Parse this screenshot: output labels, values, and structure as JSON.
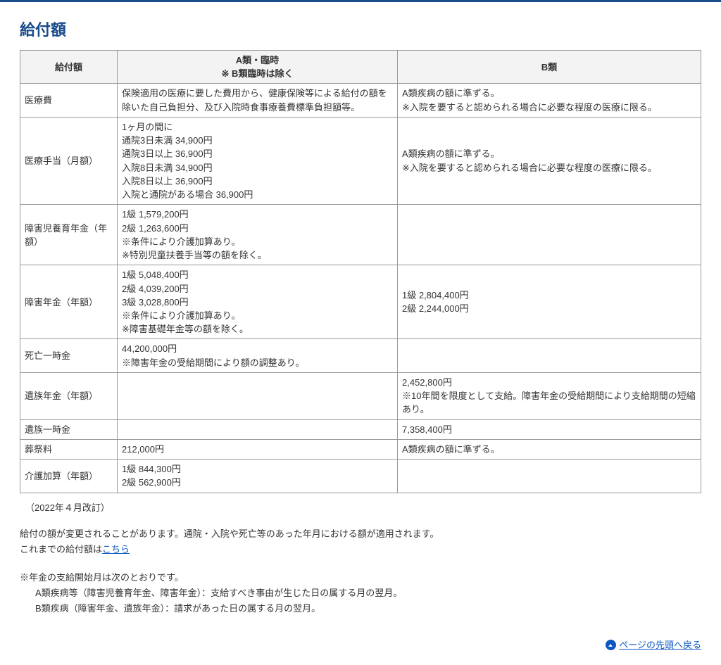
{
  "title": "給付額",
  "table": {
    "columns": [
      "給付額",
      "A類・臨時\n ※ B類臨時は除く",
      "B類"
    ],
    "rows": [
      {
        "label": "医療費",
        "a": "保険適用の医療に要した費用から、健康保険等による給付の額を除いた自己負担分、及び入院時食事療養費標準負担額等。",
        "b": "A類疾病の額に準ずる。\n※入院を要すると認められる場合に必要な程度の医療に限る。"
      },
      {
        "label": "医療手当（月額）",
        "a": "1ヶ月の間に\n通院3日未満 34,900円\n通院3日以上 36,900円\n入院8日未満 34,900円\n入院8日以上 36,900円\n入院と通院がある場合 36,900円",
        "b": "A類疾病の額に準ずる。\n※入院を要すると認められる場合に必要な程度の医療に限る。"
      },
      {
        "label": "障害児養育年金（年額）",
        "a": "1級 1,579,200円\n2級 1,263,600円\n※条件により介護加算あり。\n※特別児童扶養手当等の額を除く。",
        "b": ""
      },
      {
        "label": "障害年金（年額）",
        "a": "1級 5,048,400円\n2級 4,039,200円\n3級 3,028,800円\n※条件により介護加算あり。\n※障害基礎年金等の額を除く。",
        "b": "1級 2,804,400円\n2級 2,244,000円"
      },
      {
        "label": "死亡一時金",
        "a": "44,200,000円\n※障害年金の受給期間により額の調整あり。",
        "b": ""
      },
      {
        "label": "遺族年金（年額）",
        "a": "",
        "b": "2,452,800円\n※10年間を限度として支給。障害年金の受給期間により支給期間の短縮あり。"
      },
      {
        "label": "遺族一時金",
        "a": "",
        "b": "7,358,400円"
      },
      {
        "label": "葬祭料",
        "a": "212,000円",
        "b": "A類疾病の額に準ずる。"
      },
      {
        "label": "介護加算（年額）",
        "a": "1級 844,300円\n2級 562,900円",
        "b": ""
      }
    ]
  },
  "revision_note": "（2022年４月改訂）",
  "body": {
    "p1": "給付の額が変更されることがあります。通院・入院や死亡等のあった年月における額が適用されます。",
    "p2_prefix": "これまでの給付額は",
    "p2_link": "こちら",
    "p3": "※年金の支給開始月は次のとおりです。",
    "p3a": "A類疾病等（障害児養育年金、障害年金）：支給すべき事由が生じた日の属する月の翌月。",
    "p3b": "B類疾病（障害年金、遺族年金）：請求があった日の属する月の翌月。"
  },
  "back_to_top": "ページの先頭へ戻る"
}
